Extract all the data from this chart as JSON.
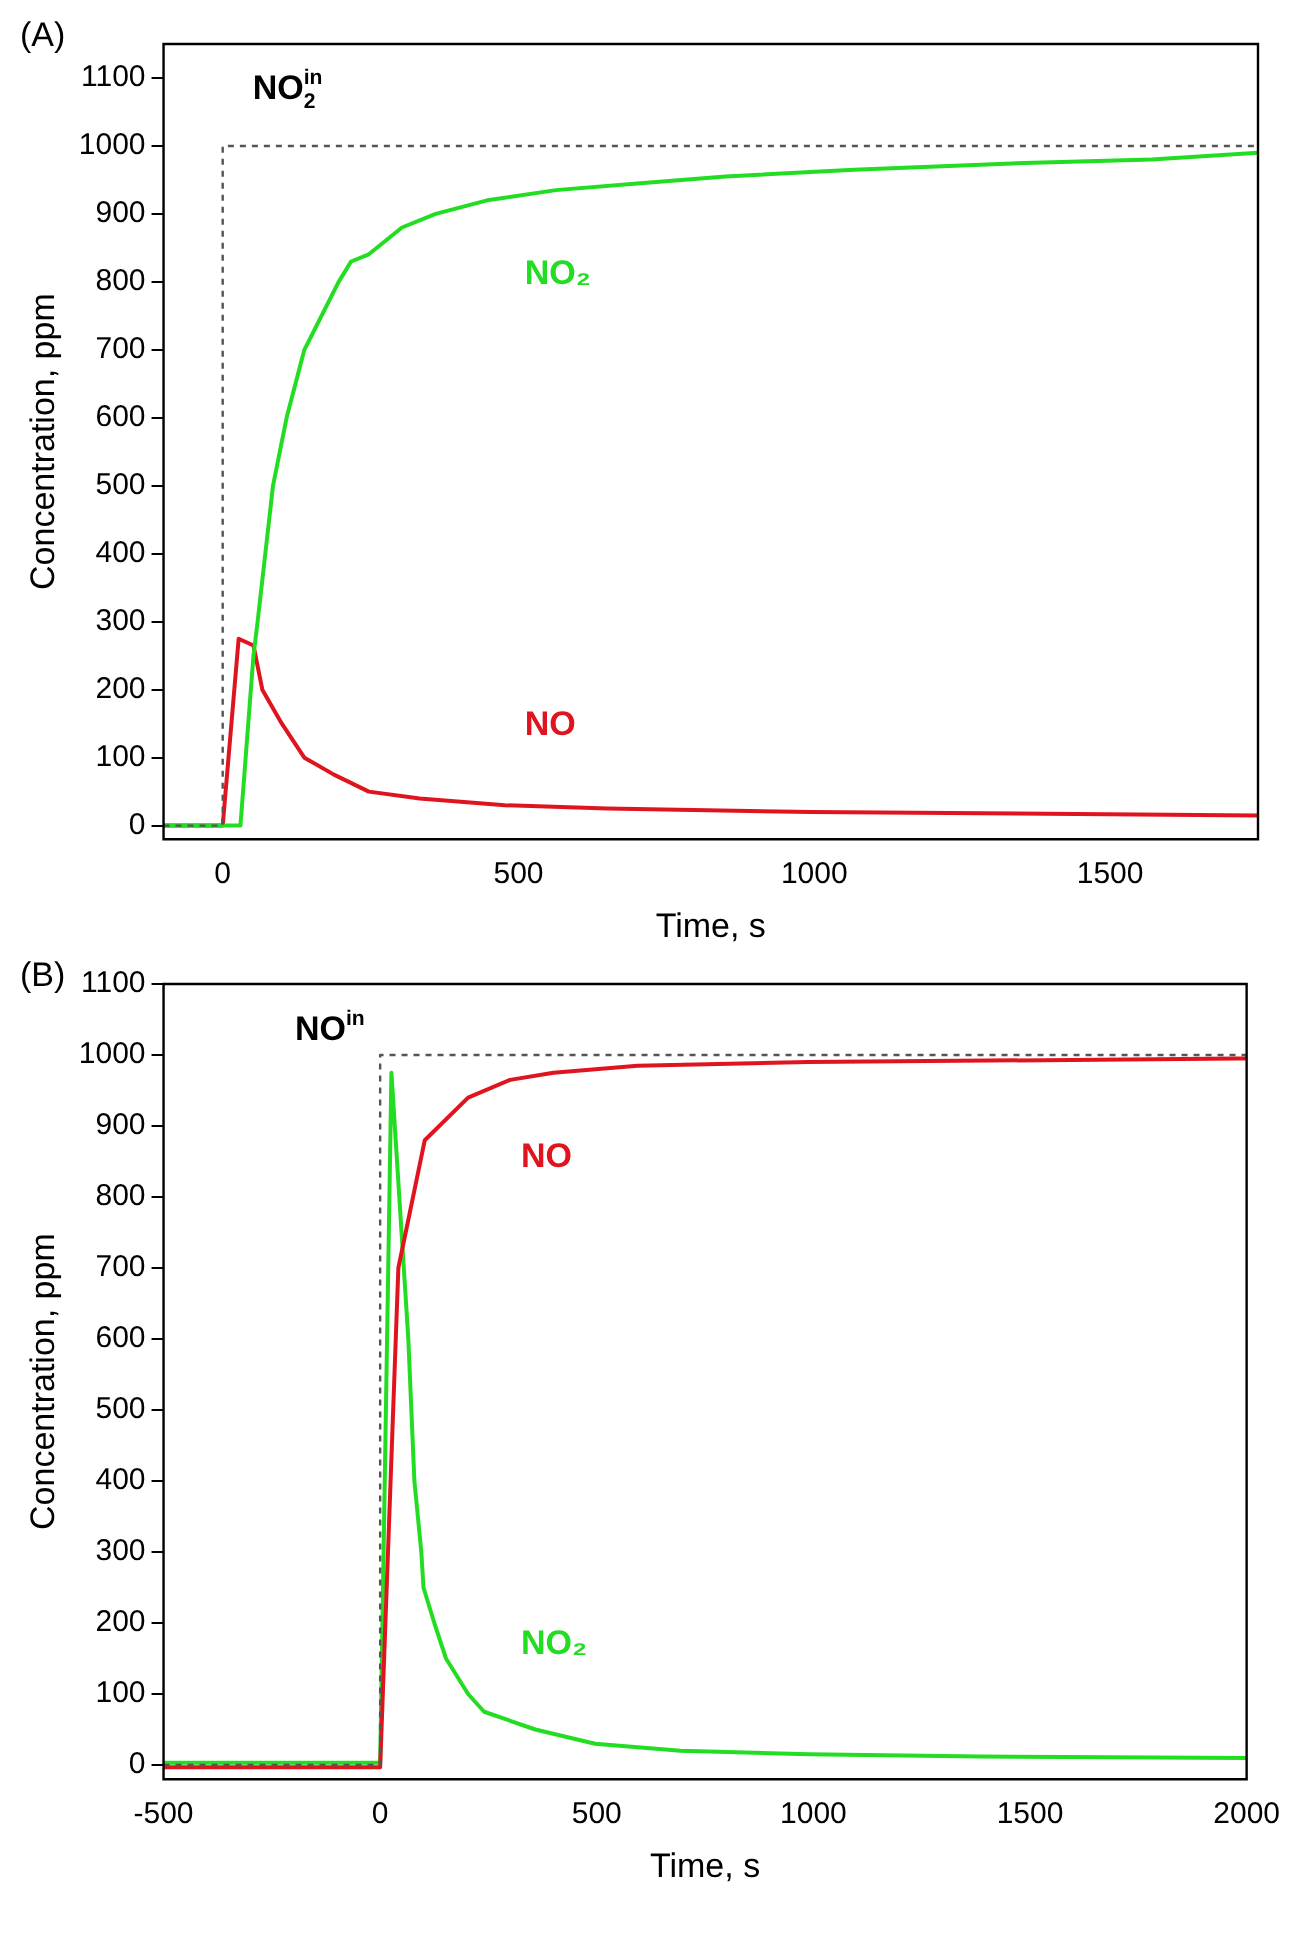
{
  "chart_data": [
    {
      "type": "line",
      "xlabel": "Time, s",
      "ylabel": "Concentration, ppm",
      "xlim": [
        -100,
        1750
      ],
      "xticks": [
        0,
        500,
        1000,
        1500
      ],
      "ylim": [
        -20,
        1150
      ],
      "yticks": [
        0,
        100,
        200,
        300,
        400,
        500,
        600,
        700,
        800,
        900,
        1000,
        1100
      ],
      "grid": false,
      "legend": false,
      "marker": "none",
      "annotations": [
        "(A)"
      ],
      "series": [
        {
          "name": "NO$_{2}$$^{in}$",
          "color": "#555555",
          "line_style": "dashed",
          "x": [
            -100,
            0,
            0,
            1750
          ],
          "values": [
            0,
            0,
            1000,
            1000
          ]
        },
        {
          "name": "NO₂",
          "color": "#22dd22",
          "x": [
            -100,
            30,
            52,
            59,
            85,
            108,
            138,
            167,
            196,
            217,
            246,
            303,
            360,
            447,
            563,
            706,
            850,
            1067,
            1355,
            1570,
            1750
          ],
          "values": [
            0,
            0,
            250,
            300,
            500,
            600,
            700,
            750,
            800,
            830,
            840,
            880,
            900,
            920,
            935,
            945,
            955,
            965,
            975,
            980,
            990
          ]
        },
        {
          "name": "NO",
          "color": "#e0141e",
          "x": [
            -100,
            0,
            27,
            52,
            67,
            100,
            138,
            188,
            247,
            333,
            477,
            650,
            995,
            1750
          ],
          "values": [
            0,
            0,
            275,
            265,
            200,
            150,
            100,
            75,
            50,
            40,
            30,
            25,
            20,
            15
          ]
        }
      ]
    },
    {
      "type": "line",
      "xlabel": "Time, s",
      "ylabel": "Concentration, ppm",
      "xlim": [
        -500,
        2000
      ],
      "xticks": [
        -500,
        0,
        500,
        1000,
        1500,
        2000
      ],
      "ylim": [
        -20,
        1100
      ],
      "yticks": [
        0,
        100,
        200,
        300,
        400,
        500,
        600,
        700,
        800,
        900,
        1000,
        1100
      ],
      "grid": false,
      "legend": false,
      "marker": "none",
      "annotations": [
        "(B)"
      ],
      "series": [
        {
          "name": "NO$^{in}$",
          "color": "#555555",
          "line_style": "dashed",
          "x": [
            -500,
            0,
            0,
            2000
          ],
          "values": [
            0,
            0,
            1000,
            1000
          ]
        },
        {
          "name": "NO",
          "color": "#e0141e",
          "x": [
            -500,
            0,
            42,
            103,
            203,
            300,
            400,
            594,
            988,
            1980,
            2000
          ],
          "values": [
            -3,
            -3,
            700,
            880,
            940,
            965,
            975,
            985,
            990,
            995,
            995
          ]
        },
        {
          "name": "NO₂",
          "color": "#22dd22",
          "x": [
            -500,
            0,
            26,
            65,
            79,
            95,
            100,
            125,
            152,
            203,
            240,
            358,
            496,
            693,
            990,
            1382,
            2000
          ],
          "values": [
            3,
            3,
            975,
            600,
            400,
            300,
            250,
            200,
            150,
            100,
            75,
            50,
            30,
            20,
            15,
            12,
            10
          ]
        }
      ]
    }
  ]
}
